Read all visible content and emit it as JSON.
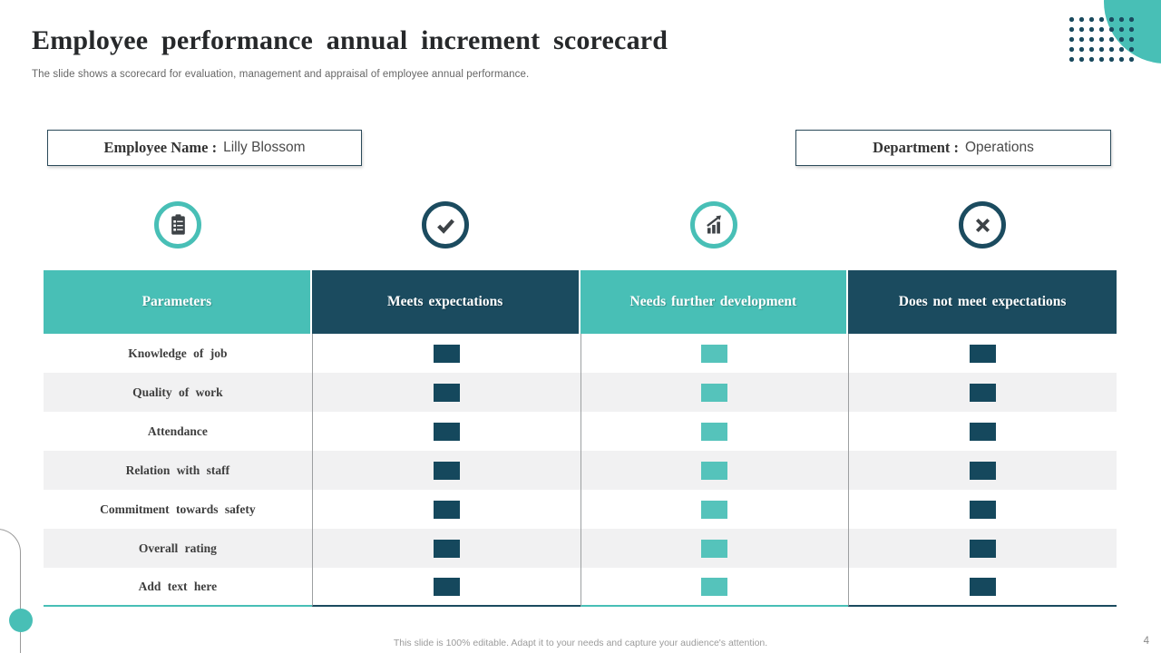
{
  "slide": {
    "title": "Employee performance annual increment scorecard",
    "subtitle": "The slide shows a scorecard for evaluation, management and appraisal of employee  annual performance.",
    "footer": "This slide is 100% editable.  Adapt it to your needs and capture your audience's attention.",
    "page_number": "4"
  },
  "info_boxes": {
    "employee": {
      "label": "Employee Name :",
      "value": "Lilly Blossom"
    },
    "department": {
      "label": "Department :",
      "value": "Operations"
    }
  },
  "icons": [
    {
      "name": "clipboard-checklist-icon",
      "color": "#48bfb6"
    },
    {
      "name": "checkmark-icon",
      "color": "#1b4b5f"
    },
    {
      "name": "growth-chart-icon",
      "color": "#48bfb6"
    },
    {
      "name": "cross-icon",
      "color": "#1b4b5f"
    }
  ],
  "table": {
    "columns": [
      {
        "label": "Parameters",
        "header_color": "#48bfb6",
        "marker_color": null
      },
      {
        "label": "Meets expectations",
        "header_color": "#1b4b5f",
        "marker_color": "#15485d"
      },
      {
        "label": "Needs further development",
        "header_color": "#48bfb6",
        "marker_color": "#55c3bb"
      },
      {
        "label": "Does not meet expectations",
        "header_color": "#1b4b5f",
        "marker_color": "#15485d"
      }
    ],
    "rows": [
      "Knowledge of job",
      "Quality of work",
      "Attendance",
      "Relation with staff",
      "Commitment towards safety",
      "Overall rating",
      "Add text here"
    ]
  },
  "colors": {
    "teal": "#48bfb6",
    "navy": "#1b4b5f"
  }
}
